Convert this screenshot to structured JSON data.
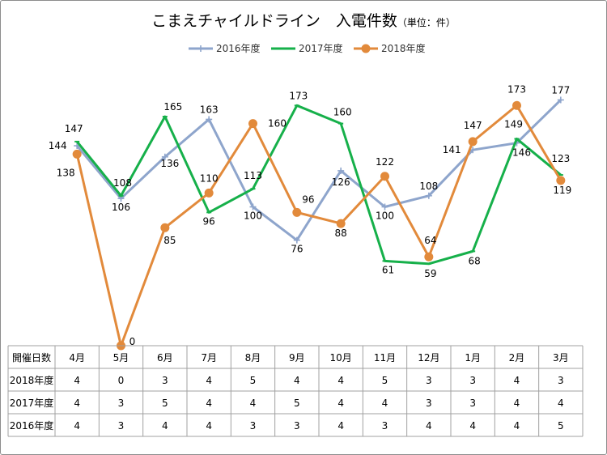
{
  "chart_data": {
    "type": "line",
    "title": "こまえチャイルドライン　入電件数",
    "title_unit": "（単位：件）",
    "categories": [
      "4月",
      "5月",
      "6月",
      "7月",
      "8月",
      "9月",
      "10月",
      "11月",
      "12月",
      "1月",
      "2月",
      "3月"
    ],
    "legend_position": "top-center",
    "grid": false,
    "series": [
      {
        "name": "2016年度",
        "color": "#8ea5cc",
        "marker": "plus",
        "values": [
          144,
          106,
          136,
          163,
          100,
          76,
          126,
          100,
          108,
          141,
          146,
          177
        ]
      },
      {
        "name": "2017年度",
        "color": "#16b04a",
        "marker": "dash",
        "values": [
          147,
          108,
          165,
          96,
          113,
          173,
          160,
          61,
          59,
          68,
          149,
          123
        ]
      },
      {
        "name": "2018年度",
        "color": "#e28a3b",
        "marker": "circle",
        "values": [
          138,
          0,
          85,
          110,
          160,
          96,
          88,
          122,
          64,
          147,
          173,
          119
        ]
      }
    ],
    "table": {
      "header_label": "開催日数",
      "rows": [
        {
          "label": "2018年度",
          "values": [
            "4",
            "0",
            "3",
            "4",
            "5",
            "4",
            "4",
            "5",
            "3",
            "3",
            "4",
            "3"
          ]
        },
        {
          "label": "2017年度",
          "values": [
            "4",
            "3",
            "5",
            "4",
            "4",
            "5",
            "4",
            "4",
            "3",
            "3",
            "4",
            "4"
          ]
        },
        {
          "label": "2016年度",
          "values": [
            "4",
            "3",
            "4",
            "4",
            "3",
            "3",
            "4",
            "3",
            "4",
            "4",
            "4",
            "5"
          ]
        }
      ]
    }
  }
}
